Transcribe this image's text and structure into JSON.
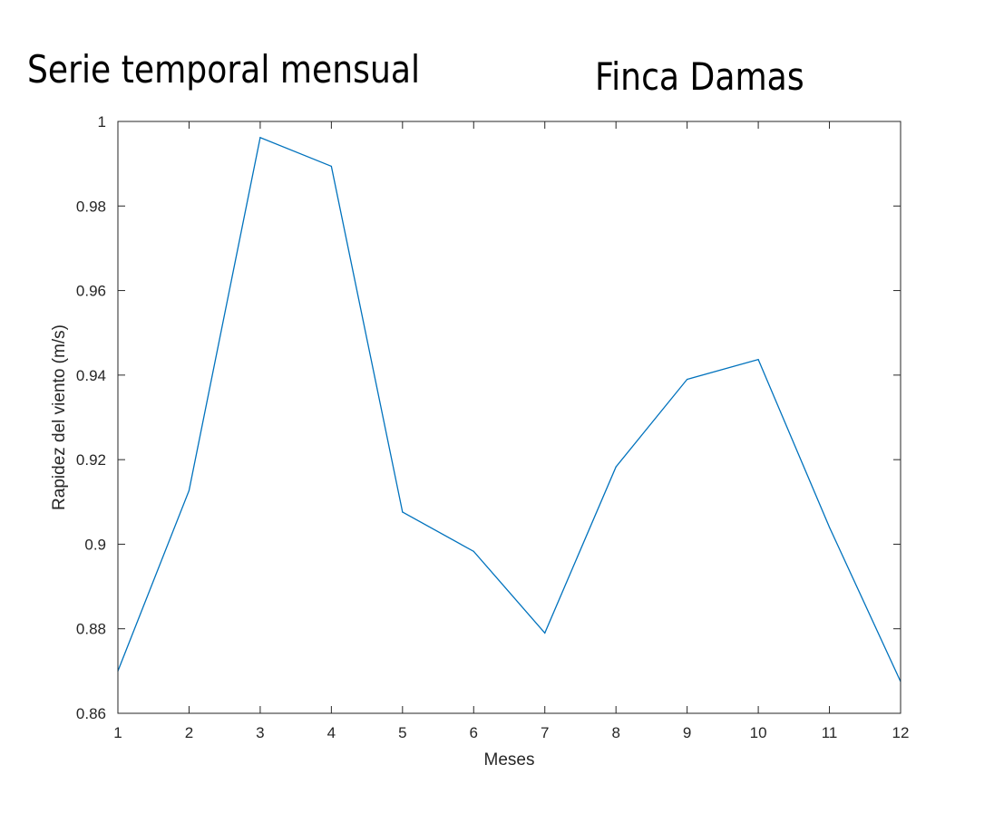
{
  "annotations": {
    "left": "Serie temporal mensual",
    "right": "Finca Damas"
  },
  "chart_data": {
    "type": "line",
    "title": "",
    "xlabel": "Meses",
    "ylabel": "Rapidez del viento (m/s)",
    "xlim": [
      1,
      12
    ],
    "ylim": [
      0.86,
      1.0
    ],
    "xticks": [
      1,
      2,
      3,
      4,
      5,
      6,
      7,
      8,
      9,
      10,
      11,
      12
    ],
    "yticks": [
      0.86,
      0.88,
      0.9,
      0.92,
      0.94,
      0.96,
      0.98,
      1
    ],
    "ytick_labels": [
      "0.86",
      "0.88",
      "0.9",
      "0.92",
      "0.94",
      "0.96",
      "0.98",
      "1"
    ],
    "grid": false,
    "box": true,
    "line_color": "#0072BD",
    "series": [
      {
        "x": [
          1,
          2,
          3,
          4,
          5,
          6,
          7,
          8,
          9,
          10,
          11,
          12
        ],
        "values": [
          0.87,
          0.9127,
          0.9962,
          0.9894,
          0.9076,
          0.8983,
          0.879,
          0.9183,
          0.939,
          0.9437,
          0.904,
          0.8675
        ]
      }
    ]
  }
}
